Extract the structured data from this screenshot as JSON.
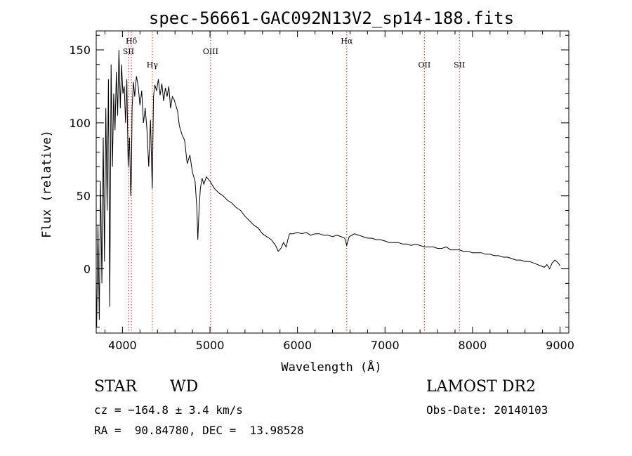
{
  "chart_data": {
    "type": "line",
    "title": "spec-56661-GAC092N13V2_sp14-188.fits",
    "xlabel": "Wavelength (Å)",
    "ylabel": "Flux (relative)",
    "xlim": [
      3700,
      9100
    ],
    "ylim": [
      -44,
      163
    ],
    "x_ticks": [
      4000,
      5000,
      6000,
      7000,
      8000,
      9000
    ],
    "x_tick_labels": [
      "4000",
      "5000",
      "6000",
      "7000",
      "8000",
      "9000"
    ],
    "y_ticks": [
      0,
      50,
      100,
      150
    ],
    "y_tick_labels": [
      "0",
      "50",
      "100",
      "150"
    ],
    "grid": false,
    "line_color": "#000000",
    "marker_color": "#cc2222",
    "series": [
      {
        "x": [
          3705,
          3720,
          3735,
          3750,
          3765,
          3780,
          3795,
          3810,
          3825,
          3840,
          3855,
          3870,
          3885,
          3900,
          3915,
          3930,
          3945,
          3960,
          3975,
          3990,
          4005,
          4020,
          4035,
          4050,
          4065,
          4080,
          4095,
          4102,
          4110,
          4125,
          4140,
          4160,
          4180,
          4200,
          4220,
          4240,
          4260,
          4280,
          4300,
          4320,
          4340,
          4355,
          4370,
          4390,
          4410,
          4430,
          4450,
          4470,
          4490,
          4510,
          4530,
          4550,
          4570,
          4590,
          4610,
          4630,
          4650,
          4680,
          4710,
          4740,
          4770,
          4800,
          4830,
          4850,
          4861,
          4875,
          4890,
          4910,
          4930,
          4960,
          5000,
          5050,
          5100,
          5150,
          5200,
          5250,
          5300,
          5350,
          5400,
          5450,
          5500,
          5550,
          5600,
          5650,
          5700,
          5750,
          5780,
          5810,
          5840,
          5870,
          5890,
          5910,
          5950,
          6000,
          6050,
          6100,
          6150,
          6200,
          6250,
          6300,
          6350,
          6400,
          6450,
          6500,
          6540,
          6563,
          6590,
          6650,
          6700,
          6750,
          6800,
          6850,
          6900,
          6950,
          7000,
          7050,
          7100,
          7150,
          7200,
          7250,
          7300,
          7350,
          7400,
          7450,
          7500,
          7550,
          7600,
          7650,
          7700,
          7750,
          7800,
          7850,
          7900,
          7950,
          8000,
          8050,
          8100,
          8150,
          8200,
          8250,
          8300,
          8350,
          8400,
          8450,
          8500,
          8550,
          8600,
          8650,
          8700,
          8740,
          8780,
          8820,
          8850,
          8880,
          8910,
          8940,
          8960,
          8980,
          9000
        ],
        "y": [
          -40,
          30,
          -35,
          60,
          -10,
          90,
          5,
          110,
          40,
          130,
          -26,
          140,
          70,
          120,
          95,
          135,
          105,
          150,
          110,
          140,
          120,
          125,
          100,
          130,
          70,
          90,
          50,
          62,
          110,
          128,
          118,
          132,
          125,
          112,
          122,
          100,
          110,
          95,
          70,
          102,
          55,
          118,
          126,
          122,
          130,
          119,
          127,
          115,
          124,
          118,
          125,
          110,
          118,
          116,
          112,
          108,
          98,
          92,
          88,
          72,
          78,
          66,
          60,
          42,
          20,
          40,
          55,
          62,
          58,
          63,
          60,
          55,
          52,
          50,
          47,
          45,
          42,
          40,
          36,
          33,
          30,
          28,
          24,
          22,
          20,
          16,
          12,
          14,
          18,
          15,
          20,
          24,
          24,
          25,
          24,
          25,
          23,
          24,
          24,
          23,
          23,
          22,
          23,
          22,
          21,
          16,
          22,
          24,
          23,
          22,
          21,
          21,
          20,
          20,
          19,
          18,
          18,
          18,
          17,
          17,
          16,
          17,
          16,
          15,
          15,
          15,
          14,
          14,
          15,
          13,
          13,
          13,
          12,
          12,
          11,
          11,
          11,
          10,
          10,
          9,
          9,
          8,
          8,
          7,
          6,
          6,
          5,
          5,
          4,
          3,
          2,
          1,
          3,
          0,
          4,
          6,
          5,
          4,
          2
        ]
      }
    ],
    "line_markers": [
      {
        "label": "Hδ",
        "x": 4102,
        "row": 1
      },
      {
        "label": "SII",
        "x": 4069,
        "row": 2
      },
      {
        "label": "Hγ",
        "x": 4341,
        "row": 3
      },
      {
        "label": "OIII",
        "x": 5007,
        "row": 2
      },
      {
        "label": "Hα",
        "x": 6563,
        "row": 1
      },
      {
        "label": "OII",
        "x": 7450,
        "row": 3
      },
      {
        "label": "SII",
        "x": 7850,
        "row": 3
      }
    ]
  },
  "info": {
    "object_type": "STAR",
    "subclass": "WD",
    "survey": "LAMOST DR2",
    "redshift": "cz = −164.8 ± 3.4 km/s",
    "obs_date": "Obs-Date: 20140103",
    "coords": "RA =  90.84780, DEC =  13.98528"
  }
}
